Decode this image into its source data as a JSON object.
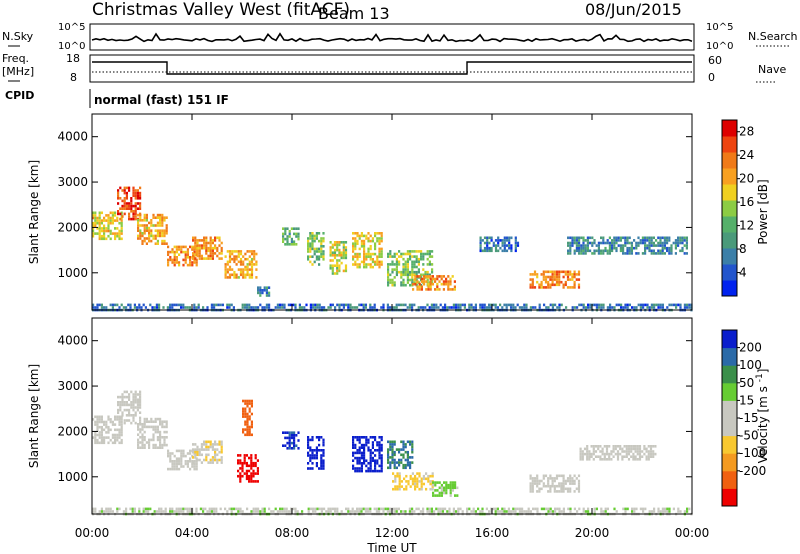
{
  "header": {
    "station": "Christmas Valley West (fitACF)",
    "beam": "Beam 13",
    "date": "08/Jun/2015"
  },
  "strip": {
    "nsky_label": "N.Sky",
    "nsearch_label": "N.Search",
    "noise_ticks": [
      "10^5",
      "10^0"
    ],
    "freq_label_lines": [
      "Freq.",
      "[MHz]"
    ],
    "freq_ticks": [
      "18",
      "8"
    ],
    "nave_label": "Nave",
    "nave_ticks": [
      "60",
      "0"
    ],
    "cpid_label": "CPID",
    "cpid_text": "normal (fast) 151 IF"
  },
  "panels": {
    "ylabel": "Slant Range [km]",
    "xlabel": "Time UT"
  },
  "colors": {
    "power_scale": [
      "#0022ee",
      "#2255cc",
      "#3b7fa8",
      "#4a9a7a",
      "#55b06a",
      "#8ccc44",
      "#f0d020",
      "#f8a020",
      "#f07a18",
      "#ee4410",
      "#dd0000"
    ],
    "velocity_scale": [
      "#ee0000",
      "#f06010",
      "#f49a20",
      "#f8c830",
      "#c8c8c0",
      "#c8c8c0",
      "#66cc33",
      "#3a8f4a",
      "#2a6aa8",
      "#0a1ecc"
    ]
  },
  "chart_data": [
    {
      "type": "heatmap",
      "name_hint": "power",
      "x": [
        "00:00",
        "04:00",
        "08:00",
        "12:00",
        "16:00",
        "20:00",
        "00:00"
      ],
      "xlim_hours": [
        0,
        24
      ],
      "ylim": [
        180,
        4500
      ],
      "yticks": [
        1000,
        2000,
        3000,
        4000
      ],
      "colorbar_label": "Power [dB]",
      "colorbar_ticks": [
        4,
        8,
        12,
        16,
        20,
        24,
        28
      ],
      "colorbar_range": [
        0,
        30
      ],
      "regions": [
        {
          "t": [
            0.0,
            1.2
          ],
          "r": [
            1750,
            2350
          ],
          "v": 18
        },
        {
          "t": [
            1.0,
            1.9
          ],
          "r": [
            2200,
            2900
          ],
          "v": 26
        },
        {
          "t": [
            1.8,
            3.0
          ],
          "r": [
            1650,
            2300
          ],
          "v": 20
        },
        {
          "t": [
            3.0,
            4.2
          ],
          "r": [
            1150,
            1600
          ],
          "v": 22
        },
        {
          "t": [
            4.0,
            5.2
          ],
          "r": [
            1300,
            1800
          ],
          "v": 22
        },
        {
          "t": [
            5.3,
            6.6
          ],
          "r": [
            900,
            1500
          ],
          "v": 20
        },
        {
          "t": [
            6.6,
            7.1
          ],
          "r": [
            500,
            700
          ],
          "v": 8
        },
        {
          "t": [
            7.6,
            8.3
          ],
          "r": [
            1600,
            2000
          ],
          "v": 12
        },
        {
          "t": [
            8.6,
            9.3
          ],
          "r": [
            1200,
            1900
          ],
          "v": 14
        },
        {
          "t": [
            9.5,
            10.2
          ],
          "r": [
            1000,
            1700
          ],
          "v": 16
        },
        {
          "t": [
            10.4,
            11.6
          ],
          "r": [
            1100,
            1900
          ],
          "v": 18
        },
        {
          "t": [
            11.8,
            13.6
          ],
          "r": [
            700,
            1500
          ],
          "v": 14
        },
        {
          "t": [
            12.8,
            14.5
          ],
          "r": [
            650,
            950
          ],
          "v": 22
        },
        {
          "t": [
            15.5,
            17.0
          ],
          "r": [
            1500,
            1800
          ],
          "v": 6
        },
        {
          "t": [
            17.5,
            19.5
          ],
          "r": [
            650,
            1050
          ],
          "v": 22
        },
        {
          "t": [
            19.0,
            23.8
          ],
          "r": [
            1400,
            1800
          ],
          "v": 8
        },
        {
          "t": [
            0.0,
            24.0
          ],
          "r": [
            180,
            320
          ],
          "v": 6
        }
      ]
    },
    {
      "type": "heatmap",
      "name_hint": "velocity",
      "x": [
        "00:00",
        "04:00",
        "08:00",
        "12:00",
        "16:00",
        "20:00",
        "00:00"
      ],
      "xlim_hours": [
        0,
        24
      ],
      "ylim": [
        180,
        4500
      ],
      "yticks": [
        1000,
        2000,
        3000,
        4000
      ],
      "colorbar_label": "Velocity [m s^-1]",
      "colorbar_ticks": [
        200,
        100,
        50,
        15,
        -15,
        -50,
        -100,
        -200
      ],
      "colorbar_range": [
        -250,
        250
      ],
      "regions": [
        {
          "t": [
            0.0,
            1.2
          ],
          "r": [
            1750,
            2350
          ],
          "v": 0
        },
        {
          "t": [
            1.0,
            1.9
          ],
          "r": [
            2200,
            2900
          ],
          "v": 0
        },
        {
          "t": [
            1.8,
            3.0
          ],
          "r": [
            1650,
            2300
          ],
          "v": 0
        },
        {
          "t": [
            3.0,
            4.2
          ],
          "r": [
            1150,
            1600
          ],
          "v": -30
        },
        {
          "t": [
            4.0,
            5.2
          ],
          "r": [
            1300,
            1800
          ],
          "v": -40
        },
        {
          "t": [
            5.8,
            6.6
          ],
          "r": [
            900,
            1500
          ],
          "v": -220
        },
        {
          "t": [
            6.0,
            6.4
          ],
          "r": [
            1900,
            2700
          ],
          "v": -180
        },
        {
          "t": [
            7.6,
            8.3
          ],
          "r": [
            1600,
            2000
          ],
          "v": 210
        },
        {
          "t": [
            8.6,
            9.3
          ],
          "r": [
            1200,
            1900
          ],
          "v": 230
        },
        {
          "t": [
            10.4,
            11.6
          ],
          "r": [
            1100,
            1900
          ],
          "v": 230
        },
        {
          "t": [
            11.8,
            12.8
          ],
          "r": [
            1200,
            1800
          ],
          "v": 150
        },
        {
          "t": [
            12.0,
            13.6
          ],
          "r": [
            700,
            1100
          ],
          "v": -60
        },
        {
          "t": [
            13.6,
            14.6
          ],
          "r": [
            600,
            900
          ],
          "v": 60
        },
        {
          "t": [
            17.5,
            19.5
          ],
          "r": [
            650,
            1050
          ],
          "v": 0
        },
        {
          "t": [
            19.5,
            22.5
          ],
          "r": [
            1400,
            1700
          ],
          "v": 0
        },
        {
          "t": [
            0.0,
            24.0
          ],
          "r": [
            180,
            320
          ],
          "v": 40
        }
      ]
    }
  ]
}
